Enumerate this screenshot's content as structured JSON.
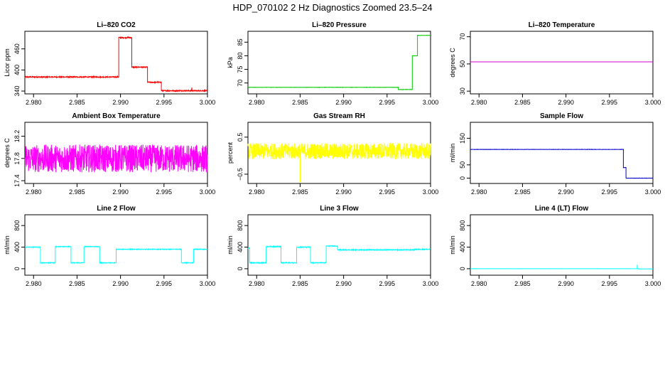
{
  "title": "HDP_070102  2 Hz Diagnostics Zoomed 23.5–24",
  "chart_data": [
    {
      "type": "line",
      "title": "Li–820 CO2",
      "ylabel": "Licor ppm",
      "color": "#ff0000",
      "xlim": [
        2.979,
        3.0
      ],
      "ylim": [
        332,
        510
      ],
      "xticks": [
        2.98,
        2.985,
        2.99,
        2.995,
        3.0
      ],
      "xtick_labels": [
        "2.980",
        "2.985",
        "2.990",
        "2.995",
        "3.000"
      ],
      "yticks": [
        340,
        400,
        460
      ],
      "ytick_labels": [
        "340",
        "400",
        "460"
      ],
      "noise": 1.5,
      "segments": [
        [
          2.979,
          2.9898,
          380
        ],
        [
          2.9898,
          2.9913,
          492
        ],
        [
          2.9913,
          2.9931,
          408
        ],
        [
          2.9931,
          2.9947,
          365
        ],
        [
          2.9947,
          3.0,
          341
        ]
      ],
      "spikes": [
        [
          2.9982,
          350
        ]
      ]
    },
    {
      "type": "line",
      "title": "Li–820 Pressure",
      "ylabel": "kPa",
      "color": "#00cc00",
      "xlim": [
        2.979,
        3.0
      ],
      "ylim": [
        66,
        89
      ],
      "xticks": [
        2.98,
        2.985,
        2.99,
        2.995,
        3.0
      ],
      "xtick_labels": [
        "2.980",
        "2.985",
        "2.990",
        "2.995",
        "3.000"
      ],
      "yticks": [
        70,
        75,
        80,
        85
      ],
      "ytick_labels": [
        "70",
        "75",
        "80",
        "85"
      ],
      "noise": 0.05,
      "segments": [
        [
          2.979,
          2.9963,
          68.4
        ],
        [
          2.9963,
          2.9979,
          67.6
        ],
        [
          2.9979,
          2.9985,
          80
        ],
        [
          2.9985,
          3.0,
          87.5
        ]
      ],
      "spikes": []
    },
    {
      "type": "line",
      "title": "Li–820 Temperature",
      "ylabel": "degrees C",
      "color": "#cc00cc",
      "xlim": [
        2.979,
        3.0
      ],
      "ylim": [
        28,
        74
      ],
      "xticks": [
        2.98,
        2.985,
        2.99,
        2.995,
        3.0
      ],
      "xtick_labels": [
        "2.980",
        "2.985",
        "2.990",
        "2.995",
        "3.000"
      ],
      "yticks": [
        30,
        50,
        70
      ],
      "ytick_labels": [
        "30",
        "50",
        "70"
      ],
      "noise": 0,
      "segments": [
        [
          2.979,
          3.0,
          51.5
        ]
      ],
      "spikes": []
    },
    {
      "type": "line",
      "title": "Ambient Box Temperature",
      "ylabel": "degrees C",
      "color": "#ff00ff",
      "xlim": [
        2.979,
        3.0
      ],
      "ylim": [
        17.35,
        18.45
      ],
      "xticks": [
        2.98,
        2.985,
        2.99,
        2.995,
        3.0
      ],
      "xtick_labels": [
        "2.980",
        "2.985",
        "2.990",
        "2.995",
        "3.000"
      ],
      "yticks": [
        17.4,
        17.8,
        18.2
      ],
      "ytick_labels": [
        "17.4",
        "17.8",
        "18.2"
      ],
      "noise": 0.25,
      "segments": [
        [
          2.979,
          3.0,
          17.8
        ]
      ],
      "spikes": []
    },
    {
      "type": "line",
      "title": "Gas Stream RH",
      "ylabel": "percent",
      "color": "#ffff00",
      "xlim": [
        2.979,
        3.0
      ],
      "ylim": [
        -0.75,
        0.9
      ],
      "xticks": [
        2.98,
        2.985,
        2.99,
        2.995,
        3.0
      ],
      "xtick_labels": [
        "2.980",
        "2.985",
        "2.990",
        "2.995",
        "3.000"
      ],
      "yticks": [
        -0.5,
        0.5
      ],
      "ytick_labels": [
        "−0.5",
        "0.5"
      ],
      "noise": 0.22,
      "segments": [
        [
          2.979,
          3.0,
          0.12
        ]
      ],
      "spikes": [
        [
          2.985,
          -0.72
        ]
      ]
    },
    {
      "type": "line",
      "title": "Sample Flow",
      "ylabel": "ml/min",
      "color": "#0000cc",
      "xlim": [
        2.979,
        3.0
      ],
      "ylim": [
        -20,
        210
      ],
      "xticks": [
        2.98,
        2.985,
        2.99,
        2.995,
        3.0
      ],
      "xtick_labels": [
        "2.980",
        "2.985",
        "2.990",
        "2.995",
        "3.000"
      ],
      "yticks": [
        0,
        50,
        150
      ],
      "ytick_labels": [
        "0",
        "50",
        "150"
      ],
      "noise": 0.5,
      "segments": [
        [
          2.979,
          2.9966,
          108
        ],
        [
          2.9966,
          2.9969,
          40
        ],
        [
          2.9969,
          3.0,
          0
        ]
      ],
      "spikes": []
    },
    {
      "type": "line",
      "title": "Line 2 Flow",
      "ylabel": "ml/min",
      "color": "#00ffff",
      "xlim": [
        2.979,
        3.0
      ],
      "ylim": [
        -120,
        1000
      ],
      "xticks": [
        2.98,
        2.985,
        2.99,
        2.995,
        3.0
      ],
      "xtick_labels": [
        "2.980",
        "2.985",
        "2.990",
        "2.995",
        "3.000"
      ],
      "yticks": [
        0,
        400,
        800
      ],
      "ytick_labels": [
        "0",
        "400",
        "800"
      ],
      "noise": 6,
      "segments": [
        [
          2.979,
          2.9808,
          400
        ],
        [
          2.9808,
          2.9825,
          110
        ],
        [
          2.9825,
          2.9843,
          410
        ],
        [
          2.9843,
          2.9858,
          110
        ],
        [
          2.9858,
          2.9876,
          410
        ],
        [
          2.9876,
          2.9895,
          110
        ],
        [
          2.9895,
          2.997,
          360
        ],
        [
          2.997,
          2.9984,
          110
        ],
        [
          2.9984,
          3.0,
          360
        ]
      ],
      "spikes": []
    },
    {
      "type": "line",
      "title": "Line 3 Flow",
      "ylabel": "ml/min",
      "color": "#00ffff",
      "xlim": [
        2.979,
        3.0
      ],
      "ylim": [
        -120,
        1000
      ],
      "xticks": [
        2.98,
        2.985,
        2.99,
        2.995,
        3.0
      ],
      "xtick_labels": [
        "2.980",
        "2.985",
        "2.990",
        "2.995",
        "3.000"
      ],
      "yticks": [
        0,
        400,
        800
      ],
      "ytick_labels": [
        "0",
        "400",
        "800"
      ],
      "noise": 8,
      "segments": [
        [
          2.979,
          2.9792,
          380
        ],
        [
          2.9792,
          2.9811,
          110
        ],
        [
          2.9811,
          2.9828,
          410
        ],
        [
          2.9828,
          2.9846,
          110
        ],
        [
          2.9846,
          2.9862,
          400
        ],
        [
          2.9862,
          2.988,
          110
        ],
        [
          2.988,
          2.9893,
          420
        ],
        [
          2.9893,
          2.9982,
          350
        ],
        [
          2.9982,
          3.0,
          360
        ]
      ],
      "spikes": []
    },
    {
      "type": "line",
      "title": "Line 4 (LT) Flow",
      "ylabel": "ml/min",
      "color": "#00ffff",
      "xlim": [
        2.979,
        3.0
      ],
      "ylim": [
        -120,
        1000
      ],
      "xticks": [
        2.98,
        2.985,
        2.99,
        2.995,
        3.0
      ],
      "xtick_labels": [
        "2.980",
        "2.985",
        "2.990",
        "2.995",
        "3.000"
      ],
      "yticks": [
        0,
        400,
        800
      ],
      "ytick_labels": [
        "0",
        "400",
        "800"
      ],
      "noise": 1,
      "segments": [
        [
          2.979,
          2.9983,
          0
        ],
        [
          2.9983,
          3.0,
          -3
        ]
      ],
      "spikes": [
        [
          2.9982,
          70
        ]
      ]
    }
  ]
}
